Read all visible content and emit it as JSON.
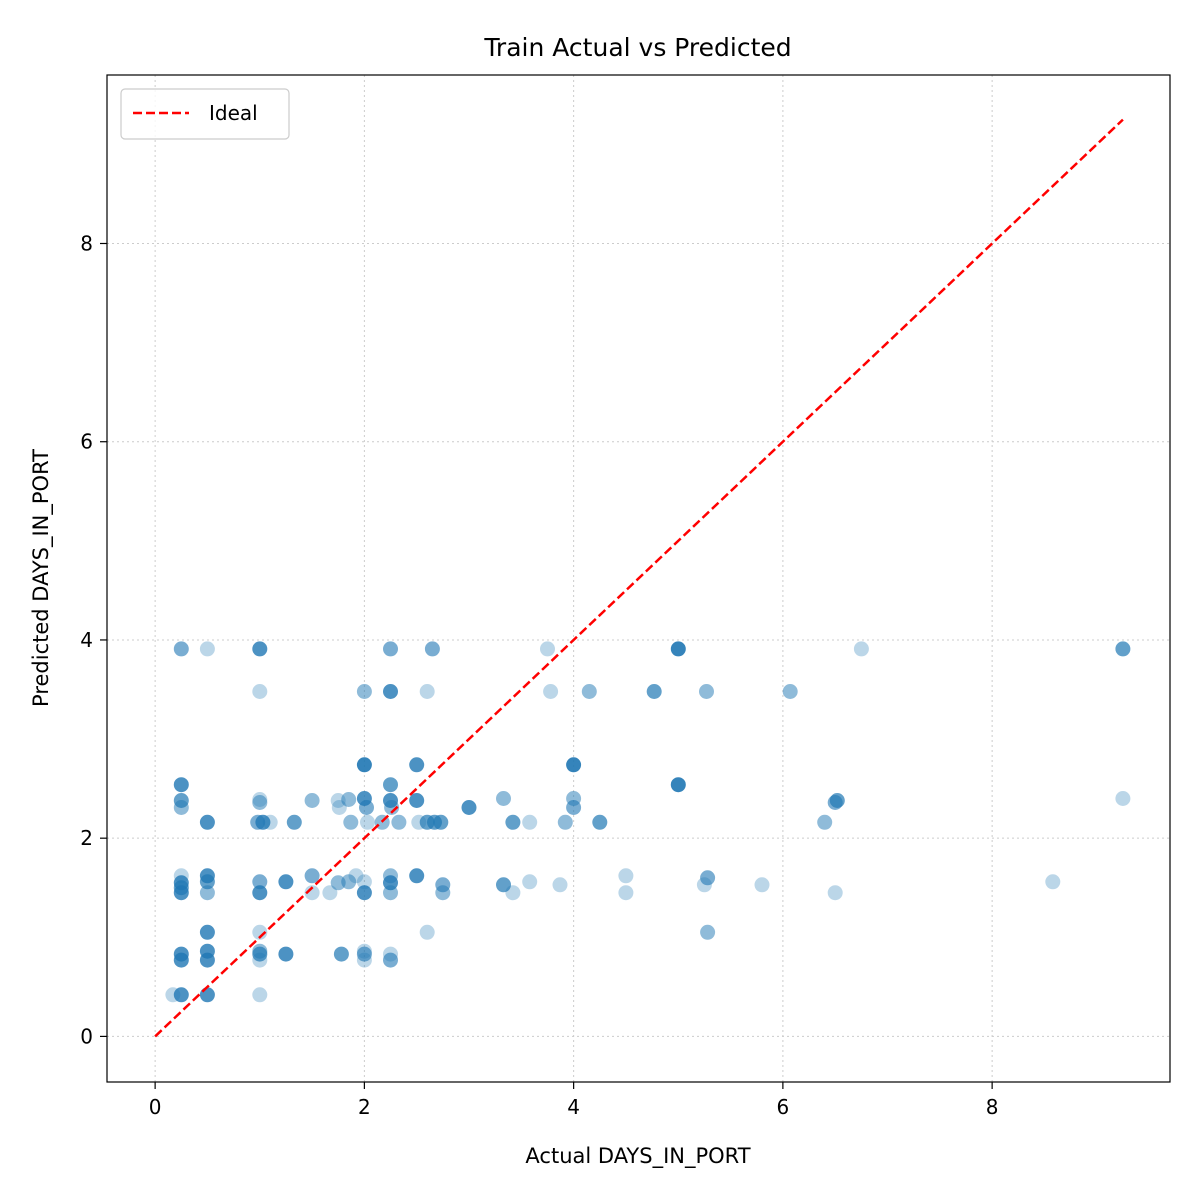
{
  "chart_data": {
    "type": "scatter",
    "title": "Train Actual vs Predicted",
    "xlabel": "Actual DAYS_IN_PORT",
    "ylabel": "Predicted DAYS_IN_PORT",
    "xlim": [
      -0.46,
      9.7
    ],
    "ylim": [
      -0.46,
      9.7
    ],
    "xticks": [
      0,
      2,
      4,
      6,
      8
    ],
    "yticks": [
      0,
      2,
      4,
      6,
      8
    ],
    "grid": true,
    "legend": {
      "position": "upper-left",
      "entries": [
        "Ideal"
      ]
    },
    "ideal_line": {
      "name": "Ideal",
      "x": [
        0,
        9.25
      ],
      "y": [
        0,
        9.25
      ],
      "color": "#ff0000",
      "style": "dashed"
    },
    "point_color": "#1f77b4",
    "points": [
      {
        "x": 0.25,
        "y": 3.91,
        "a": 0.6
      },
      {
        "x": 0.5,
        "y": 3.91,
        "a": 0.3
      },
      {
        "x": 1.0,
        "y": 3.91,
        "a": 0.8
      },
      {
        "x": 1.0,
        "y": 3.48,
        "a": 0.3
      },
      {
        "x": 2.0,
        "y": 3.48,
        "a": 0.5
      },
      {
        "x": 2.25,
        "y": 3.91,
        "a": 0.6
      },
      {
        "x": 2.25,
        "y": 3.48,
        "a": 0.8
      },
      {
        "x": 2.6,
        "y": 3.48,
        "a": 0.3
      },
      {
        "x": 2.65,
        "y": 3.91,
        "a": 0.6
      },
      {
        "x": 3.75,
        "y": 3.91,
        "a": 0.3
      },
      {
        "x": 3.78,
        "y": 3.48,
        "a": 0.3
      },
      {
        "x": 4.15,
        "y": 3.48,
        "a": 0.5
      },
      {
        "x": 4.77,
        "y": 3.48,
        "a": 0.7
      },
      {
        "x": 5.0,
        "y": 3.91,
        "a": 0.9
      },
      {
        "x": 5.27,
        "y": 3.48,
        "a": 0.5
      },
      {
        "x": 6.07,
        "y": 3.48,
        "a": 0.5
      },
      {
        "x": 6.75,
        "y": 3.91,
        "a": 0.3
      },
      {
        "x": 9.25,
        "y": 3.91,
        "a": 0.7
      },
      {
        "x": 0.25,
        "y": 2.54,
        "a": 0.8
      },
      {
        "x": 0.25,
        "y": 2.38,
        "a": 0.7
      },
      {
        "x": 0.25,
        "y": 2.31,
        "a": 0.5
      },
      {
        "x": 0.5,
        "y": 2.16,
        "a": 0.8
      },
      {
        "x": 1.0,
        "y": 2.39,
        "a": 0.3
      },
      {
        "x": 1.0,
        "y": 2.36,
        "a": 0.5
      },
      {
        "x": 0.98,
        "y": 2.16,
        "a": 0.6
      },
      {
        "x": 1.03,
        "y": 2.16,
        "a": 0.8
      },
      {
        "x": 1.1,
        "y": 2.16,
        "a": 0.3
      },
      {
        "x": 1.33,
        "y": 2.16,
        "a": 0.7
      },
      {
        "x": 1.5,
        "y": 2.38,
        "a": 0.5
      },
      {
        "x": 1.75,
        "y": 2.38,
        "a": 0.3
      },
      {
        "x": 1.76,
        "y": 2.31,
        "a": 0.3
      },
      {
        "x": 1.85,
        "y": 2.39,
        "a": 0.5
      },
      {
        "x": 1.87,
        "y": 2.16,
        "a": 0.5
      },
      {
        "x": 2.0,
        "y": 2.74,
        "a": 0.9
      },
      {
        "x": 2.0,
        "y": 2.4,
        "a": 0.8
      },
      {
        "x": 2.02,
        "y": 2.31,
        "a": 0.6
      },
      {
        "x": 2.03,
        "y": 2.16,
        "a": 0.3
      },
      {
        "x": 2.17,
        "y": 2.16,
        "a": 0.5
      },
      {
        "x": 2.25,
        "y": 2.54,
        "a": 0.7
      },
      {
        "x": 2.25,
        "y": 2.38,
        "a": 0.8
      },
      {
        "x": 2.26,
        "y": 2.31,
        "a": 0.5
      },
      {
        "x": 2.33,
        "y": 2.16,
        "a": 0.5
      },
      {
        "x": 2.5,
        "y": 2.74,
        "a": 0.8
      },
      {
        "x": 2.5,
        "y": 2.38,
        "a": 0.8
      },
      {
        "x": 2.52,
        "y": 2.16,
        "a": 0.3
      },
      {
        "x": 2.6,
        "y": 2.16,
        "a": 0.7
      },
      {
        "x": 2.67,
        "y": 2.16,
        "a": 0.7
      },
      {
        "x": 2.73,
        "y": 2.16,
        "a": 0.7
      },
      {
        "x": 3.0,
        "y": 2.31,
        "a": 0.8
      },
      {
        "x": 3.33,
        "y": 2.4,
        "a": 0.5
      },
      {
        "x": 3.42,
        "y": 2.16,
        "a": 0.7
      },
      {
        "x": 3.58,
        "y": 2.16,
        "a": 0.3
      },
      {
        "x": 3.92,
        "y": 2.16,
        "a": 0.5
      },
      {
        "x": 4.0,
        "y": 2.74,
        "a": 0.9
      },
      {
        "x": 4.0,
        "y": 2.4,
        "a": 0.5
      },
      {
        "x": 4.0,
        "y": 2.31,
        "a": 0.6
      },
      {
        "x": 4.25,
        "y": 2.16,
        "a": 0.7
      },
      {
        "x": 5.0,
        "y": 2.54,
        "a": 0.9
      },
      {
        "x": 6.4,
        "y": 2.16,
        "a": 0.5
      },
      {
        "x": 6.5,
        "y": 2.36,
        "a": 0.6
      },
      {
        "x": 6.52,
        "y": 2.38,
        "a": 0.7
      },
      {
        "x": 9.25,
        "y": 2.4,
        "a": 0.3
      },
      {
        "x": 0.25,
        "y": 1.62,
        "a": 0.3
      },
      {
        "x": 0.25,
        "y": 1.55,
        "a": 0.8
      },
      {
        "x": 0.25,
        "y": 1.5,
        "a": 0.7
      },
      {
        "x": 0.25,
        "y": 1.45,
        "a": 0.8
      },
      {
        "x": 0.5,
        "y": 1.62,
        "a": 0.8
      },
      {
        "x": 0.5,
        "y": 1.56,
        "a": 0.7
      },
      {
        "x": 0.5,
        "y": 1.45,
        "a": 0.5
      },
      {
        "x": 1.0,
        "y": 1.56,
        "a": 0.6
      },
      {
        "x": 1.0,
        "y": 1.45,
        "a": 0.8
      },
      {
        "x": 1.25,
        "y": 1.56,
        "a": 0.8
      },
      {
        "x": 1.5,
        "y": 1.62,
        "a": 0.6
      },
      {
        "x": 1.5,
        "y": 1.45,
        "a": 0.3
      },
      {
        "x": 1.67,
        "y": 1.45,
        "a": 0.3
      },
      {
        "x": 1.75,
        "y": 1.55,
        "a": 0.5
      },
      {
        "x": 1.85,
        "y": 1.56,
        "a": 0.5
      },
      {
        "x": 1.92,
        "y": 1.62,
        "a": 0.3
      },
      {
        "x": 2.0,
        "y": 1.56,
        "a": 0.3
      },
      {
        "x": 2.0,
        "y": 1.45,
        "a": 0.8
      },
      {
        "x": 2.25,
        "y": 1.62,
        "a": 0.5
      },
      {
        "x": 2.25,
        "y": 1.55,
        "a": 0.8
      },
      {
        "x": 2.25,
        "y": 1.45,
        "a": 0.5
      },
      {
        "x": 2.5,
        "y": 1.62,
        "a": 0.8
      },
      {
        "x": 2.75,
        "y": 1.53,
        "a": 0.6
      },
      {
        "x": 2.75,
        "y": 1.45,
        "a": 0.5
      },
      {
        "x": 3.33,
        "y": 1.53,
        "a": 0.7
      },
      {
        "x": 3.42,
        "y": 1.45,
        "a": 0.3
      },
      {
        "x": 3.58,
        "y": 1.56,
        "a": 0.3
      },
      {
        "x": 3.87,
        "y": 1.53,
        "a": 0.3
      },
      {
        "x": 4.5,
        "y": 1.62,
        "a": 0.3
      },
      {
        "x": 4.5,
        "y": 1.45,
        "a": 0.3
      },
      {
        "x": 5.25,
        "y": 1.53,
        "a": 0.3
      },
      {
        "x": 5.28,
        "y": 1.6,
        "a": 0.6
      },
      {
        "x": 5.8,
        "y": 1.53,
        "a": 0.3
      },
      {
        "x": 6.5,
        "y": 1.45,
        "a": 0.3
      },
      {
        "x": 8.58,
        "y": 1.56,
        "a": 0.3
      },
      {
        "x": 0.5,
        "y": 1.05,
        "a": 0.8
      },
      {
        "x": 1.0,
        "y": 1.05,
        "a": 0.3
      },
      {
        "x": 2.6,
        "y": 1.05,
        "a": 0.3
      },
      {
        "x": 5.28,
        "y": 1.05,
        "a": 0.5
      },
      {
        "x": 0.25,
        "y": 0.83,
        "a": 0.8
      },
      {
        "x": 0.25,
        "y": 0.77,
        "a": 0.8
      },
      {
        "x": 0.5,
        "y": 0.86,
        "a": 0.8
      },
      {
        "x": 0.5,
        "y": 0.77,
        "a": 0.8
      },
      {
        "x": 1.0,
        "y": 0.86,
        "a": 0.5
      },
      {
        "x": 1.0,
        "y": 0.83,
        "a": 0.7
      },
      {
        "x": 1.0,
        "y": 0.77,
        "a": 0.3
      },
      {
        "x": 1.25,
        "y": 0.83,
        "a": 0.8
      },
      {
        "x": 1.78,
        "y": 0.83,
        "a": 0.7
      },
      {
        "x": 2.0,
        "y": 0.86,
        "a": 0.3
      },
      {
        "x": 2.0,
        "y": 0.83,
        "a": 0.6
      },
      {
        "x": 2.0,
        "y": 0.77,
        "a": 0.3
      },
      {
        "x": 2.25,
        "y": 0.83,
        "a": 0.3
      },
      {
        "x": 2.25,
        "y": 0.77,
        "a": 0.6
      },
      {
        "x": 0.17,
        "y": 0.42,
        "a": 0.3
      },
      {
        "x": 0.25,
        "y": 0.42,
        "a": 0.8
      },
      {
        "x": 0.5,
        "y": 0.42,
        "a": 0.8
      },
      {
        "x": 1.0,
        "y": 0.42,
        "a": 0.3
      }
    ]
  }
}
